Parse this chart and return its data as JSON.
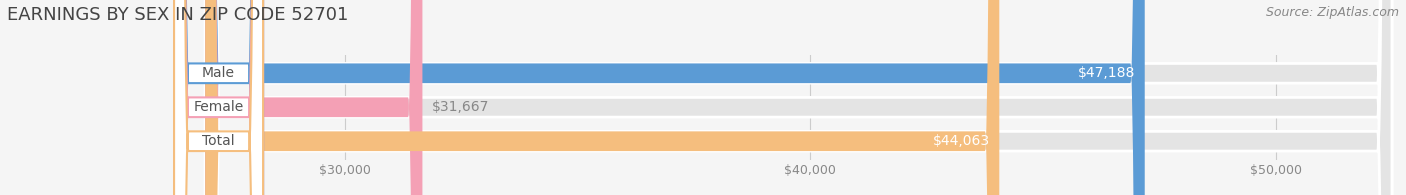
{
  "title": "EARNINGS BY SEX IN ZIP CODE 52701",
  "source": "Source: ZipAtlas.com",
  "categories": [
    "Male",
    "Female",
    "Total"
  ],
  "values": [
    47188,
    31667,
    44063
  ],
  "bar_colors": [
    "#5B9BD5",
    "#F4A0B5",
    "#F5BE7E"
  ],
  "label_inside": [
    true,
    false,
    true
  ],
  "bar_labels": [
    "$47,188",
    "$31,667",
    "$44,063"
  ],
  "xlim_min": 27000,
  "xlim_max": 52500,
  "xticks": [
    30000,
    40000,
    50000
  ],
  "xtick_labels": [
    "$30,000",
    "$40,000",
    "$50,000"
  ],
  "bar_height": 0.58,
  "background_color": "#f5f5f5",
  "bar_bg_color": "#e4e4e4",
  "title_fontsize": 13,
  "source_fontsize": 9,
  "tick_fontsize": 9,
  "label_fontsize": 10,
  "category_fontsize": 10
}
